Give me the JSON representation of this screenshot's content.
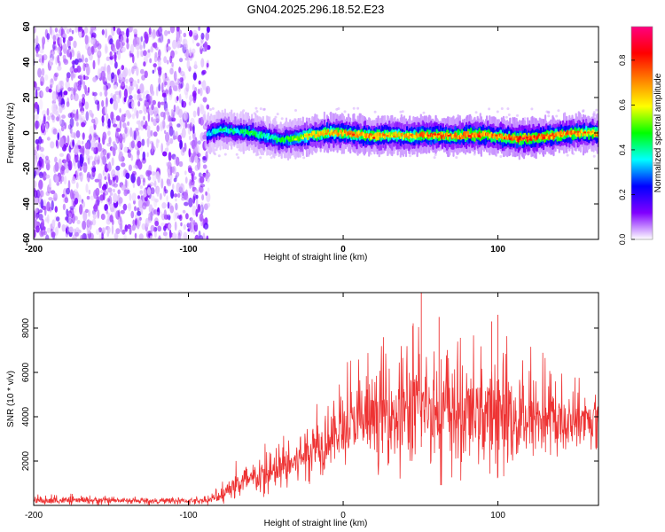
{
  "chart_data": [
    {
      "type": "heatmap",
      "title": "GN04.2025.296.18.52.E23",
      "xlabel": "Height of straight line (km)",
      "ylabel": "Frequency (Hz)",
      "xlim": [
        -200,
        165
      ],
      "ylim": [
        -60,
        60
      ],
      "x_ticks": [
        -200,
        -100,
        0,
        100
      ],
      "y_ticks": [
        -60,
        -40,
        -20,
        0,
        20,
        40,
        60
      ],
      "noise_region_x": [
        -200,
        -87
      ],
      "signal_track": {
        "x": [
          -88,
          -80,
          -70,
          -60,
          -50,
          -40,
          -30,
          -20,
          -10,
          0,
          10,
          20,
          30,
          40,
          50,
          60,
          70,
          80,
          90,
          100,
          110,
          120,
          130,
          140,
          150,
          160,
          165
        ],
        "frequency": [
          -1,
          2,
          1,
          0,
          -2,
          -4,
          -3,
          -1,
          0,
          0,
          -1,
          -2,
          -1,
          -2,
          -1,
          -1,
          -2,
          -1,
          -1,
          -2,
          -3,
          -3,
          -2,
          -1,
          0,
          0,
          0
        ],
        "peak_amplitude": [
          0.4,
          0.45,
          0.45,
          0.5,
          0.45,
          0.5,
          0.6,
          0.7,
          0.75,
          0.8,
          0.75,
          0.8,
          0.7,
          0.75,
          0.8,
          0.85,
          0.8,
          0.85,
          0.8,
          0.8,
          0.85,
          0.9,
          0.85,
          0.8,
          0.8,
          0.75,
          0.75
        ]
      },
      "colorbar": {
        "label": "Normalized spectral amplitude",
        "range": [
          0,
          0.95
        ],
        "ticks": [
          0.0,
          0.2,
          0.4,
          0.6,
          0.8
        ],
        "tick_labels": [
          "0.0",
          "0.2",
          "0.4",
          "0.6",
          "0.8"
        ],
        "colors": [
          "#ffffff",
          "#8000ff",
          "#0000ff",
          "#00ffff",
          "#00ff00",
          "#ffff00",
          "#ff8000",
          "#ff0000",
          "#ff0080"
        ]
      }
    },
    {
      "type": "line",
      "xlabel": "Height of straight line (km)",
      "ylabel": "SNR (10 * v/v)",
      "xlim": [
        -200,
        165
      ],
      "ylim": [
        0,
        9600
      ],
      "x_ticks": [
        -200,
        -100,
        0,
        100
      ],
      "y_ticks": [
        2000,
        4000,
        6000,
        8000
      ],
      "series": [
        {
          "name": "SNR",
          "color": "#ee3333",
          "x_envelope": [
            -200,
            -180,
            -160,
            -140,
            -120,
            -100,
            -90,
            -85,
            -80,
            -75,
            -70,
            -65,
            -60,
            -55,
            -50,
            -45,
            -40,
            -35,
            -30,
            -25,
            -20,
            -15,
            -10,
            -5,
            0,
            5,
            10,
            15,
            20,
            25,
            30,
            35,
            40,
            45,
            50,
            55,
            60,
            65,
            70,
            75,
            80,
            85,
            90,
            95,
            100,
            105,
            110,
            115,
            120,
            125,
            130,
            135,
            140,
            145,
            150,
            155,
            160,
            165
          ],
          "mean": [
            200,
            220,
            230,
            210,
            200,
            210,
            220,
            250,
            400,
            700,
            900,
            1000,
            1100,
            1200,
            1300,
            1400,
            1600,
            1800,
            2000,
            2300,
            2600,
            2800,
            3000,
            3200,
            3400,
            3600,
            3700,
            3800,
            3900,
            4000,
            4100,
            4200,
            4300,
            4300,
            4400,
            4400,
            4300,
            4200,
            4200,
            4100,
            4100,
            4200,
            4200,
            4200,
            4100,
            4000,
            3900,
            3800,
            3900,
            4000,
            3900,
            3800,
            3700,
            3700,
            3800,
            3800,
            3800,
            3800
          ],
          "max": [
            500,
            550,
            450,
            420,
            400,
            420,
            450,
            600,
            1000,
            1600,
            2200,
            2400,
            2600,
            2800,
            3200,
            3100,
            3600,
            3800,
            4200,
            4500,
            5200,
            5400,
            6000,
            6400,
            6600,
            7000,
            7000,
            7200,
            7400,
            7600,
            7800,
            8000,
            8200,
            8400,
            9600,
            8200,
            8600,
            8400,
            8200,
            7600,
            7800,
            8000,
            8200,
            8000,
            8600,
            8200,
            7400,
            7200,
            7600,
            7400,
            7000,
            6600,
            6400,
            6200,
            6000,
            6400,
            6500,
            6500
          ],
          "min": [
            0,
            0,
            0,
            0,
            0,
            0,
            0,
            0,
            0,
            100,
            200,
            200,
            200,
            300,
            300,
            300,
            400,
            500,
            600,
            800,
            1000,
            1200,
            1400,
            1500,
            1600,
            1600,
            1500,
            1400,
            1400,
            1300,
            1200,
            1000,
            1000,
            900,
            800,
            900,
            800,
            900,
            1000,
            1100,
            1200,
            1300,
            1400,
            1400,
            1200,
            1300,
            1500,
            1600,
            1800,
            2000,
            2000,
            2000,
            2000,
            2200,
            2400,
            2400,
            2400,
            2400
          ]
        }
      ]
    }
  ]
}
